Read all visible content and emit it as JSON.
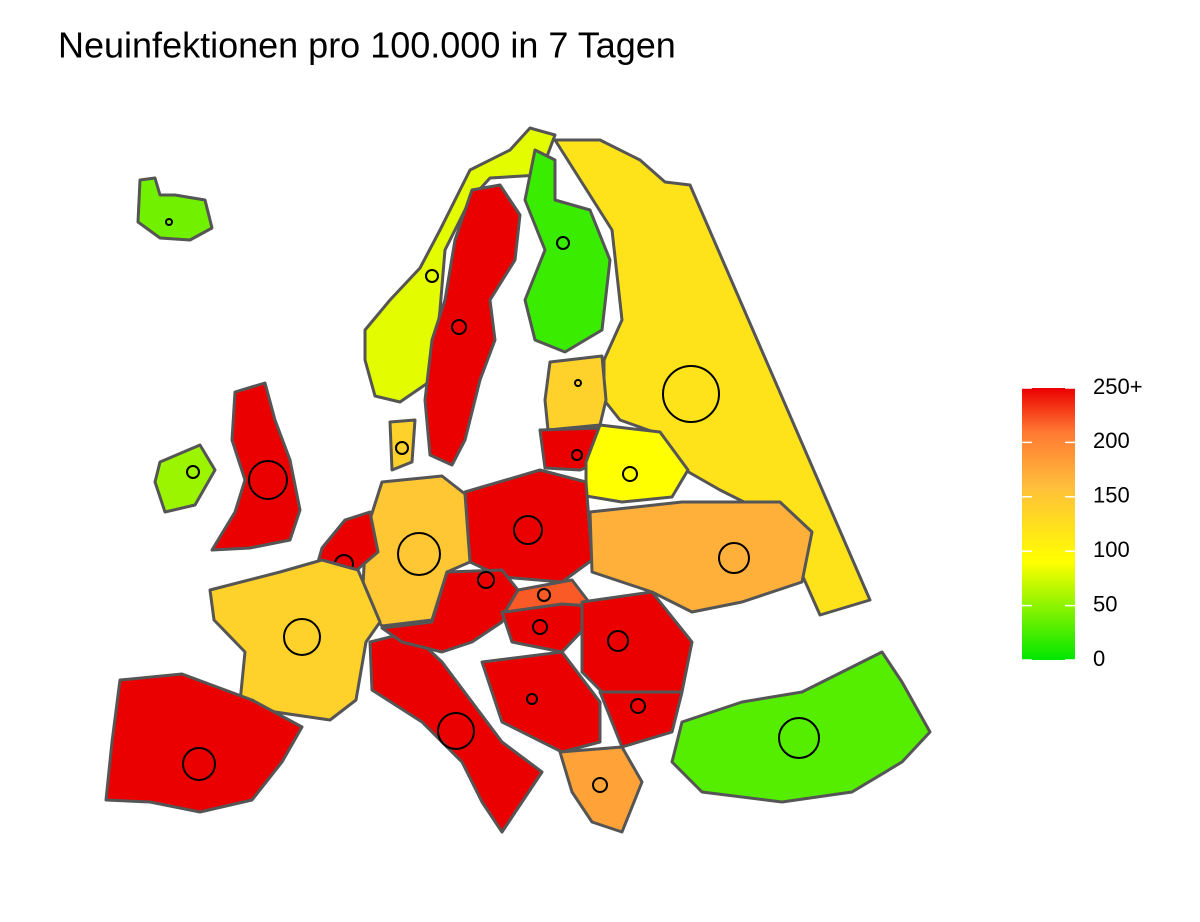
{
  "map_data": {
    "type": "choropleth",
    "title": "Neuinfektionen pro 100.000 in 7 Tagen",
    "values": [
      40,
      55,
      300,
      80,
      300,
      20,
      120,
      140,
      300,
      90,
      300,
      150,
      300,
      140,
      300,
      300,
      300,
      300,
      220,
      300,
      300,
      300,
      180,
      170,
      30,
      140
    ],
    "colorlim": [
      0,
      250
    ],
    "colorticks": [
      {
        "value": 250,
        "label": "250+"
      },
      200,
      150,
      100,
      50,
      0
    ]
  }
}
